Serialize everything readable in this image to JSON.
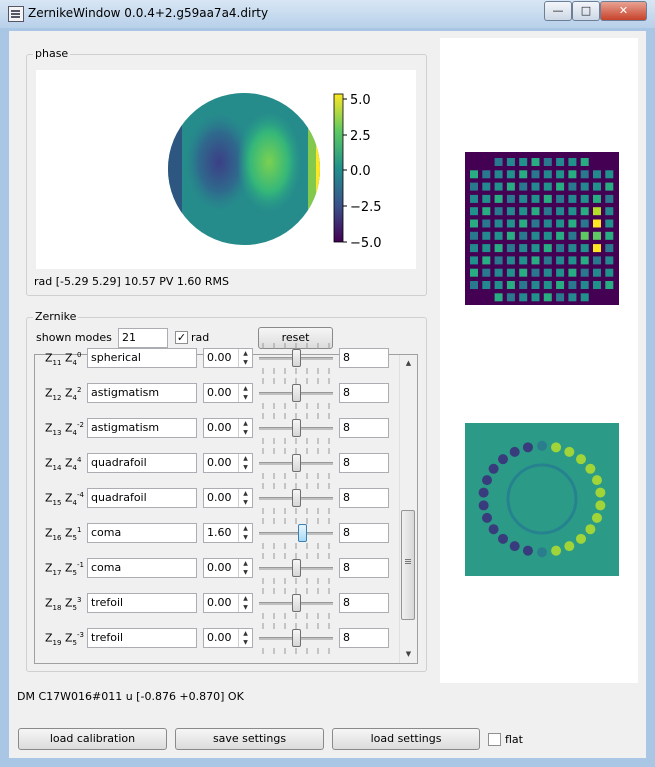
{
  "window": {
    "title": "ZernikeWindow 0.0.4+2.g59aa7a4.dirty",
    "minimize": "—",
    "maximize": "□",
    "close": "✕"
  },
  "phase": {
    "group_title": "phase",
    "colorbar_ticks": [
      "5.0",
      "2.5",
      "0.0",
      "−2.5",
      "−5.0"
    ],
    "info": "rad [-5.29  5.29]  10.57 PV  1.60 RMS"
  },
  "zernike": {
    "group_title": "Zernike",
    "shown_modes_label": "shown modes",
    "shown_modes_value": "21",
    "rad_label": "rad",
    "rad_checked": true,
    "reset_label": "reset",
    "rows": [
      {
        "index": "11",
        "n": "4",
        "m": "0",
        "name": "spherical",
        "value": "0.00",
        "max": "8",
        "level": 0.5
      },
      {
        "index": "12",
        "n": "4",
        "m": "2",
        "name": "astigmatism",
        "value": "0.00",
        "max": "8",
        "level": 0.5
      },
      {
        "index": "13",
        "n": "4",
        "m": "-2",
        "name": "astigmatism",
        "value": "0.00",
        "max": "8",
        "level": 0.5
      },
      {
        "index": "14",
        "n": "4",
        "m": "4",
        "name": "quadrafoil",
        "value": "0.00",
        "max": "8",
        "level": 0.5
      },
      {
        "index": "15",
        "n": "4",
        "m": "-4",
        "name": "quadrafoil",
        "value": "0.00",
        "max": "8",
        "level": 0.5
      },
      {
        "index": "16",
        "n": "5",
        "m": "1",
        "name": "coma",
        "value": "1.60",
        "max": "8",
        "level": 0.6
      },
      {
        "index": "17",
        "n": "5",
        "m": "-1",
        "name": "coma",
        "value": "0.00",
        "max": "8",
        "level": 0.5
      },
      {
        "index": "18",
        "n": "5",
        "m": "3",
        "name": "trefoil",
        "value": "0.00",
        "max": "8",
        "level": 0.5
      },
      {
        "index": "19",
        "n": "5",
        "m": "-3",
        "name": "trefoil",
        "value": "0.00",
        "max": "8",
        "level": 0.5
      }
    ]
  },
  "status": "DM C17W016#011 u [-0.876 +0.870] OK",
  "buttons": {
    "load_calibration": "load calibration",
    "save_settings": "save settings",
    "load_settings": "load settings",
    "flat_label": "flat",
    "flat_checked": false
  },
  "colors": {
    "viridis_dark": "#440154",
    "viridis_mid": "#21918c",
    "viridis_light": "#fde725",
    "background": "#f0f0f0"
  }
}
